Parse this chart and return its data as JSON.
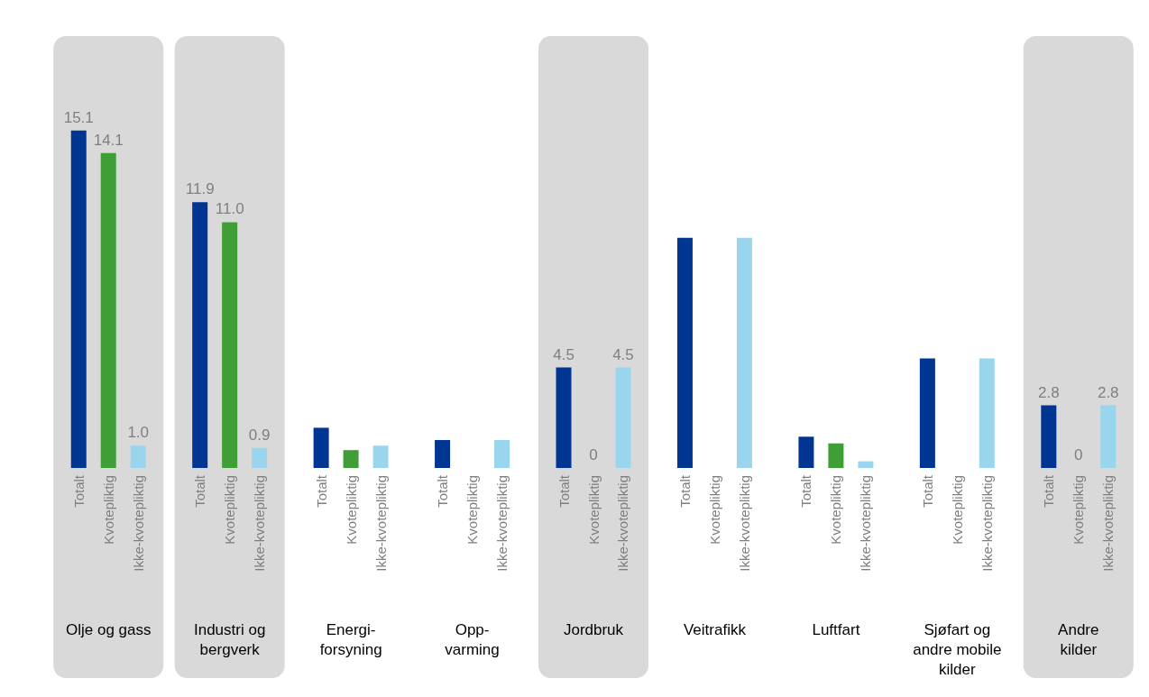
{
  "chart_data": {
    "type": "bar",
    "categories": [
      "Olje og gass",
      "Industri og\nbergverk",
      "Energi-\nforsyning",
      "Opp-\nvarming",
      "Jordbruk",
      "Veitrafikk",
      "Luftfart",
      "Sjøfart og\nandre mobile\nkilder",
      "Andre\nkilder"
    ],
    "series": [
      {
        "name": "Totalt",
        "color": "#003591",
        "values": [
          15.1,
          11.9,
          1.8,
          1.25,
          4.5,
          10.3,
          1.4,
          4.9,
          2.8
        ],
        "value_labels": [
          "15.1",
          "11.9",
          null,
          null,
          "4.5",
          null,
          null,
          null,
          "2.8"
        ]
      },
      {
        "name": "Kvotepliktig",
        "color": "#3f9e35",
        "values": [
          14.1,
          11.0,
          0.8,
          0,
          0,
          0,
          1.1,
          0,
          0
        ],
        "value_labels": [
          "14.1",
          "11.0",
          null,
          null,
          "0",
          null,
          null,
          null,
          "0"
        ]
      },
      {
        "name": "Ikke-kvotepliktig",
        "color": "#99d6ee",
        "values": [
          1.0,
          0.9,
          1.0,
          1.25,
          4.5,
          10.3,
          0.3,
          4.9,
          2.8
        ],
        "value_labels": [
          "1.0",
          "0.9",
          null,
          null,
          "4.5",
          null,
          null,
          null,
          "2.8"
        ]
      }
    ],
    "bands": [
      {
        "axis": "x",
        "from": "Olje og gass",
        "to": "Olje og gass",
        "color": "#d9d9d9"
      },
      {
        "axis": "x",
        "from": "Industri og\nbergverk",
        "to": "Industri og\nbergverk",
        "color": "#d9d9d9"
      },
      {
        "axis": "x",
        "from": "Jordbruk",
        "to": "Jordbruk",
        "color": "#d9d9d9"
      },
      {
        "axis": "x",
        "from": "Andre\nkilder",
        "to": "Andre\nkilder",
        "color": "#d9d9d9"
      }
    ],
    "tick_labels": "x",
    "grid": false,
    "legend": false
  }
}
